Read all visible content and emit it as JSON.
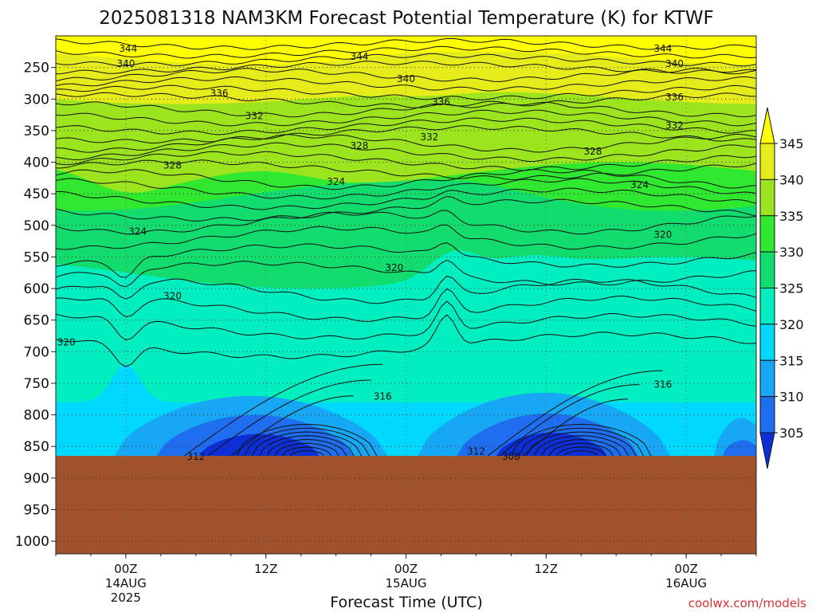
{
  "chart_data": {
    "type": "heatmap",
    "title": "2025081318 NAM3KM Forecast Potential Temperature (K) for KTWF",
    "xlabel": "Forecast Time (UTC)",
    "ylabel": "",
    "y_ticks": [
      "250",
      "300",
      "350",
      "400",
      "450",
      "500",
      "550",
      "600",
      "650",
      "700",
      "750",
      "800",
      "850",
      "900",
      "950",
      "1000"
    ],
    "x_ticks": [
      {
        "hour": 0,
        "lines": [
          "00Z",
          "14AUG",
          "2025"
        ]
      },
      {
        "hour": 12,
        "lines": [
          "12Z"
        ]
      },
      {
        "hour": 24,
        "lines": [
          "00Z",
          "15AUG"
        ]
      },
      {
        "hour": 36,
        "lines": [
          "12Z"
        ]
      },
      {
        "hour": 48,
        "lines": [
          "00Z",
          "16AUG"
        ]
      }
    ],
    "xlim_hours": [
      -6,
      54
    ],
    "ylim_hpa": [
      200,
      1020
    ],
    "surface_pressure_hpa": 865,
    "colorbar": {
      "levels": [
        "305",
        "310",
        "315",
        "320",
        "325",
        "330",
        "335",
        "340",
        "345"
      ],
      "colors": [
        "#0d2fd8",
        "#1f6ef0",
        "#16a8f4",
        "#00d8ff",
        "#00eec0",
        "#12dc6e",
        "#30e830",
        "#9be41e",
        "#e6ec1a",
        "#ffff00"
      ]
    },
    "contour_levels": [
      308,
      312,
      316,
      320,
      324,
      328,
      332,
      336,
      340,
      344
    ],
    "contour_labels": [
      {
        "text": "344",
        "hour": 0.2,
        "p": 220
      },
      {
        "text": "344",
        "hour": 20,
        "p": 233
      },
      {
        "text": "344",
        "hour": 46,
        "p": 220
      },
      {
        "text": "340",
        "hour": 0,
        "p": 244
      },
      {
        "text": "340",
        "hour": 24,
        "p": 268
      },
      {
        "text": "340",
        "hour": 47,
        "p": 244
      },
      {
        "text": "336",
        "hour": 8,
        "p": 291
      },
      {
        "text": "336",
        "hour": 27,
        "p": 305
      },
      {
        "text": "336",
        "hour": 47,
        "p": 297
      },
      {
        "text": "332",
        "hour": 11,
        "p": 327
      },
      {
        "text": "332",
        "hour": 26,
        "p": 360
      },
      {
        "text": "332",
        "hour": 47,
        "p": 342
      },
      {
        "text": "328",
        "hour": 4,
        "p": 405
      },
      {
        "text": "328",
        "hour": 20,
        "p": 374
      },
      {
        "text": "328",
        "hour": 40,
        "p": 383
      },
      {
        "text": "324",
        "hour": 18,
        "p": 431
      },
      {
        "text": "324",
        "hour": 44,
        "p": 436
      },
      {
        "text": "324",
        "hour": 1,
        "p": 510
      },
      {
        "text": "320",
        "hour": 4,
        "p": 612
      },
      {
        "text": "320",
        "hour": 23,
        "p": 567
      },
      {
        "text": "320",
        "hour": 46,
        "p": 515
      },
      {
        "text": "320",
        "hour": -5.1,
        "p": 685
      },
      {
        "text": "316",
        "hour": 22,
        "p": 771
      },
      {
        "text": "316",
        "hour": 46,
        "p": 752
      },
      {
        "text": "312",
        "hour": 6,
        "p": 866
      },
      {
        "text": "312",
        "hour": 30,
        "p": 858
      },
      {
        "text": "308",
        "hour": 33,
        "p": 866
      }
    ]
  },
  "credit": "coolwx.com/models"
}
